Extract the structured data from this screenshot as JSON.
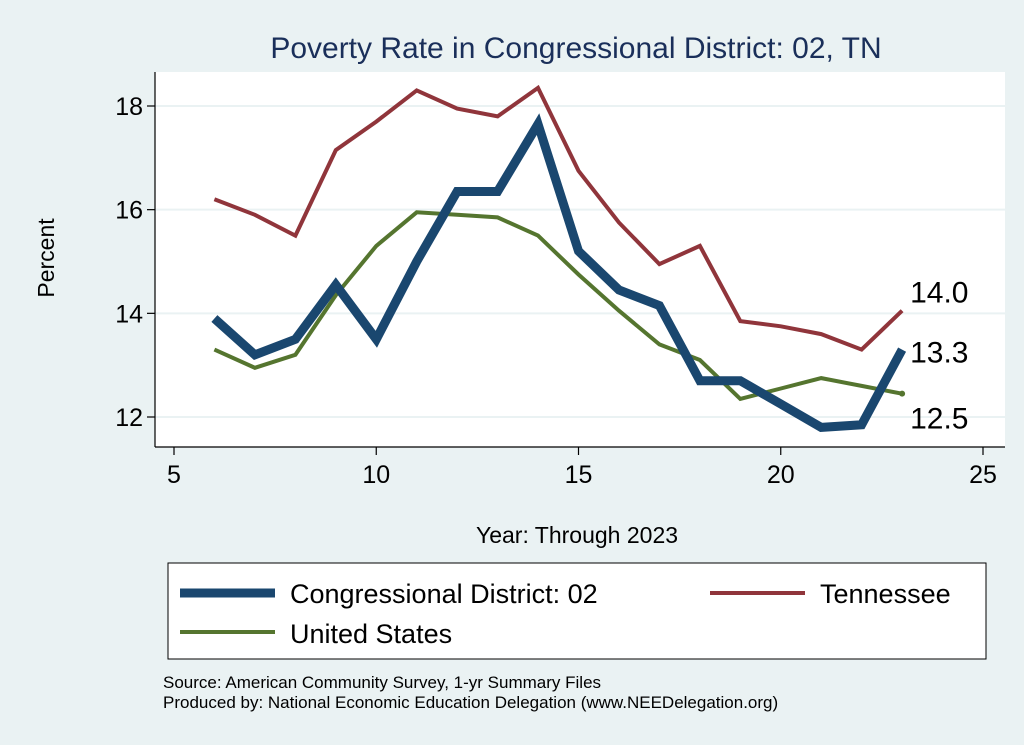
{
  "chart_data": {
    "type": "line",
    "title": "Poverty Rate in Congressional District:  02, TN",
    "xlabel": "Year: Through 2023",
    "ylabel": "Percent",
    "xlim": [
      5,
      25
    ],
    "ylim": [
      11.8,
      18.7
    ],
    "xticks": [
      5,
      10,
      15,
      20,
      25
    ],
    "yticks": [
      12,
      14,
      16,
      18
    ],
    "grid": true,
    "series": [
      {
        "name": "Congressional District:  02",
        "color": "#1a476f",
        "x": [
          6,
          7,
          8,
          9,
          10,
          11,
          12,
          13,
          14,
          15,
          16,
          17,
          18,
          19,
          20,
          21,
          22,
          23
        ],
        "values": [
          13.9,
          13.2,
          13.5,
          14.55,
          13.5,
          15.0,
          16.35,
          16.35,
          17.65,
          15.2,
          14.45,
          14.15,
          12.7,
          12.7,
          12.25,
          11.8,
          11.85,
          13.3
        ],
        "end_label": "13.3"
      },
      {
        "name": "Tennessee",
        "color": "#90353b",
        "x": [
          6,
          7,
          8,
          9,
          10,
          11,
          12,
          13,
          14,
          15,
          16,
          17,
          18,
          19,
          20,
          21,
          22,
          23
        ],
        "values": [
          16.2,
          15.9,
          15.5,
          17.15,
          17.7,
          18.3,
          17.95,
          17.8,
          18.35,
          16.75,
          15.75,
          14.95,
          15.3,
          13.85,
          13.75,
          13.6,
          13.3,
          14.05
        ],
        "end_label": "14.0"
      },
      {
        "name": "United States",
        "color": "#55752f",
        "x": [
          6,
          7,
          8,
          9,
          10,
          11,
          12,
          13,
          14,
          15,
          16,
          17,
          18,
          19,
          20,
          21,
          22,
          23
        ],
        "values": [
          13.3,
          12.95,
          13.2,
          14.35,
          15.3,
          15.95,
          15.9,
          15.85,
          15.5,
          14.75,
          14.05,
          13.4,
          13.1,
          12.35,
          12.55,
          12.75,
          12.6,
          12.45
        ],
        "end_label": "12.5"
      }
    ],
    "legend": {
      "position": "bottom",
      "entries": [
        "Congressional District:  02",
        "Tennessee",
        "United States"
      ]
    },
    "notes": [
      "Source: American Community Survey, 1-yr Summary Files",
      "Produced by: National Economic Education Delegation (www.NEEDelegation.org)"
    ]
  }
}
